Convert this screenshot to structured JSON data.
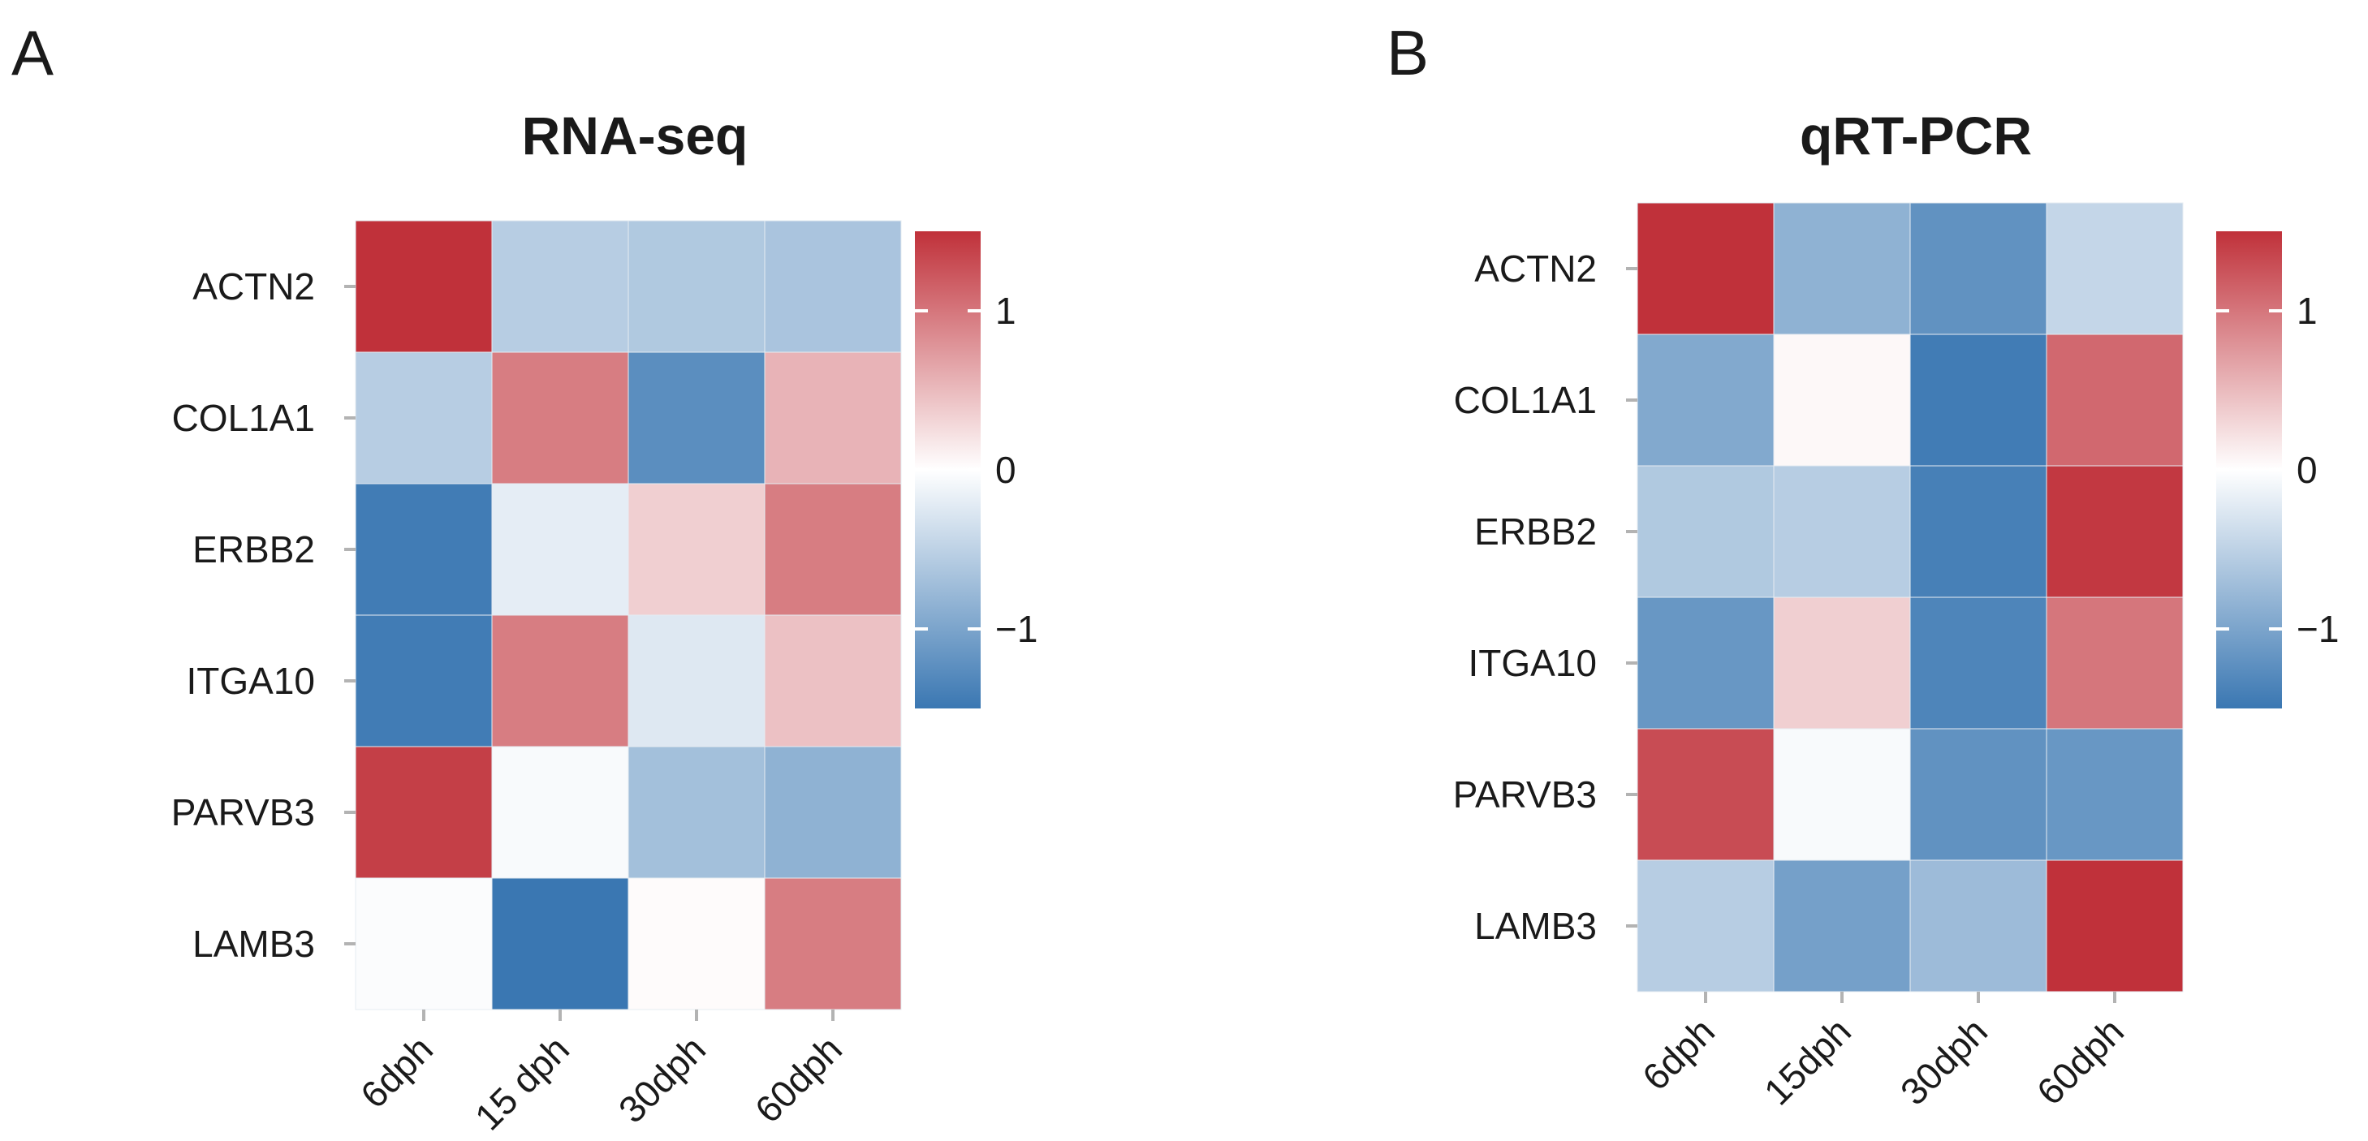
{
  "colors": {
    "low": "#3a77b2",
    "mid": "#ffffff",
    "high": "#c0313a",
    "tick": "#b3b3b3"
  },
  "chart_data": [
    {
      "type": "heatmap",
      "panel": "A",
      "title": "RNA-seq",
      "rows": [
        "ACTN2",
        "COL1A1",
        "ERBB2",
        "ITGA10",
        "PARVB3",
        "LAMB3"
      ],
      "columns": [
        "6dph",
        "15 dph",
        "30dph",
        "60dph"
      ],
      "values": [
        [
          1.5,
          -0.55,
          -0.6,
          -0.65
        ],
        [
          -0.55,
          0.95,
          -1.25,
          0.55
        ],
        [
          -1.45,
          -0.2,
          0.35,
          0.95
        ],
        [
          -1.45,
          0.95,
          -0.25,
          0.45
        ],
        [
          1.4,
          -0.05,
          -0.7,
          -0.85
        ],
        [
          -0.03,
          -1.5,
          0.03,
          0.95
        ]
      ],
      "legend": {
        "min": -1.5,
        "max": 1.5,
        "ticks": [
          1,
          0,
          -1
        ],
        "tick_labels": [
          "1",
          "0",
          "−1"
        ]
      }
    },
    {
      "type": "heatmap",
      "panel": "B",
      "title": "qRT-PCR",
      "rows": [
        "ACTN2",
        "COL1A1",
        "ERBB2",
        "ITGA10",
        "PARVB3",
        "LAMB3"
      ],
      "columns": [
        "6dph",
        "15dph",
        "30dph",
        "60dph"
      ],
      "values": [
        [
          1.5,
          -0.85,
          -1.2,
          -0.45
        ],
        [
          -0.95,
          0.05,
          -1.45,
          1.1
        ],
        [
          -0.6,
          -0.55,
          -1.4,
          1.45
        ],
        [
          -1.15,
          0.35,
          -1.35,
          1.0
        ],
        [
          1.3,
          -0.05,
          -1.2,
          -1.15
        ],
        [
          -0.55,
          -1.05,
          -0.75,
          1.55
        ]
      ],
      "legend": {
        "min": -1.5,
        "max": 1.5,
        "ticks": [
          1,
          0,
          -1
        ],
        "tick_labels": [
          "1",
          "0",
          "−1"
        ]
      }
    }
  ]
}
